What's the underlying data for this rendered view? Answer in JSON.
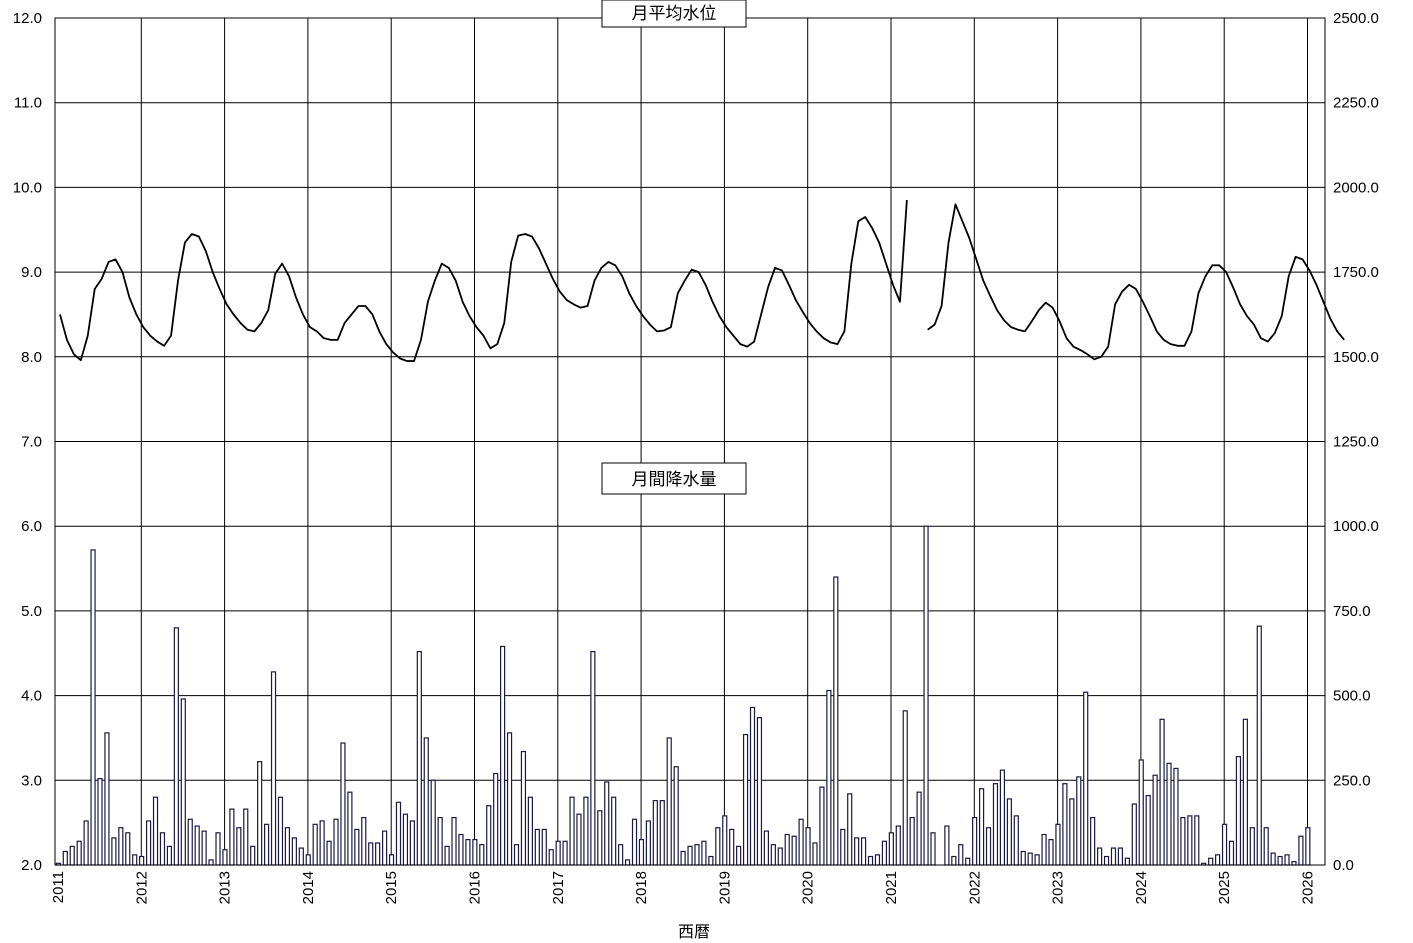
{
  "chart_data": {
    "type": "bar+line",
    "xlabel": "西暦",
    "x_ticks": [
      "2011",
      "2012",
      "2013",
      "2014",
      "2015",
      "2016",
      "2017",
      "2018",
      "2019",
      "2020",
      "2021",
      "2022",
      "2023",
      "2024",
      "2025",
      "2026"
    ],
    "start_year": 2011,
    "left_axis": {
      "ylim": [
        2.0,
        12.0
      ],
      "ticks": [
        "2.0",
        "3.0",
        "4.0",
        "5.0",
        "6.0",
        "7.0",
        "8.0",
        "9.0",
        "10.0",
        "11.0",
        "12.0"
      ]
    },
    "right_axis": {
      "ylim": [
        0,
        2500
      ],
      "ticks": [
        "0.0",
        "250.0",
        "500.0",
        "750.0",
        "1000.0",
        "1250.0",
        "1500.0",
        "1750.0",
        "2000.0",
        "2250.0",
        "2500.0"
      ]
    },
    "grid": true,
    "series": [
      {
        "name": "月平均水位",
        "type": "line",
        "axis": "left",
        "values": [
          8.5,
          8.2,
          8.03,
          7.96,
          8.25,
          8.8,
          8.92,
          9.12,
          9.15,
          9.0,
          8.7,
          8.5,
          8.35,
          8.25,
          8.18,
          8.13,
          8.25,
          8.9,
          9.35,
          9.45,
          9.42,
          9.25,
          9.0,
          8.8,
          8.62,
          8.5,
          8.4,
          8.32,
          8.3,
          8.4,
          8.55,
          8.98,
          9.1,
          8.95,
          8.7,
          8.5,
          8.35,
          8.3,
          8.22,
          8.2,
          8.2,
          8.4,
          8.5,
          8.6,
          8.6,
          8.5,
          8.3,
          8.15,
          8.05,
          7.98,
          7.95,
          7.95,
          8.2,
          8.65,
          8.9,
          9.1,
          9.05,
          8.9,
          8.65,
          8.48,
          8.35,
          8.25,
          8.1,
          8.15,
          8.4,
          9.12,
          9.43,
          9.45,
          9.42,
          9.28,
          9.1,
          8.92,
          8.77,
          8.67,
          8.62,
          8.58,
          8.6,
          8.9,
          9.05,
          9.12,
          9.08,
          8.95,
          8.75,
          8.6,
          8.48,
          8.38,
          8.3,
          8.31,
          8.35,
          8.75,
          8.9,
          9.03,
          9.0,
          8.85,
          8.65,
          8.48,
          8.35,
          8.25,
          8.15,
          8.12,
          8.18,
          8.5,
          8.82,
          9.05,
          9.02,
          8.85,
          8.67,
          8.53,
          8.4,
          8.3,
          8.22,
          8.17,
          8.15,
          8.3,
          9.1,
          9.6,
          9.65,
          9.52,
          9.35,
          9.1,
          8.85,
          8.65,
          9.85,
          null,
          null,
          8.32,
          8.38,
          8.6,
          9.35,
          9.8,
          9.6,
          9.4,
          9.15,
          8.9,
          8.72,
          8.55,
          8.43,
          8.35,
          8.32,
          8.3,
          8.42,
          8.55,
          8.64,
          8.58,
          8.42,
          8.22,
          8.12,
          8.08,
          8.03,
          7.97,
          8.0,
          8.12,
          8.62,
          8.77,
          8.85,
          8.8,
          8.65,
          8.48,
          8.3,
          8.2,
          8.15,
          8.13,
          8.13,
          8.3,
          8.75,
          8.95,
          9.08,
          9.08,
          9.0,
          8.82,
          8.62,
          8.48,
          8.38,
          8.22,
          8.18,
          8.28,
          8.48,
          8.95,
          9.18,
          9.15,
          9.02,
          8.85,
          8.65,
          8.45,
          8.3,
          8.2
        ]
      },
      {
        "name": "月間降水量",
        "type": "bar",
        "axis": "right",
        "values": [
          5,
          40,
          55,
          70,
          130,
          930,
          255,
          390,
          80,
          110,
          95,
          30,
          25,
          130,
          200,
          95,
          55,
          700,
          490,
          135,
          115,
          100,
          15,
          95,
          45,
          165,
          110,
          165,
          55,
          305,
          120,
          570,
          200,
          110,
          80,
          50,
          30,
          120,
          130,
          70,
          135,
          360,
          215,
          105,
          140,
          65,
          65,
          100,
          30,
          185,
          150,
          130,
          630,
          375,
          250,
          140,
          55,
          140,
          90,
          75,
          75,
          60,
          175,
          270,
          645,
          390,
          60,
          335,
          200,
          105,
          105,
          45,
          70,
          70,
          200,
          150,
          200,
          630,
          160,
          245,
          200,
          60,
          15,
          135,
          75,
          130,
          190,
          190,
          375,
          290,
          40,
          55,
          60,
          70,
          25,
          110,
          145,
          105,
          55,
          385,
          465,
          435,
          100,
          60,
          50,
          90,
          85,
          135,
          110,
          65,
          230,
          515,
          850,
          105,
          210,
          80,
          80,
          25,
          30,
          70,
          95,
          115,
          455,
          140,
          215,
          1000,
          95,
          0,
          115,
          25,
          60,
          20,
          140,
          225,
          110,
          240,
          280,
          195,
          145,
          40,
          35,
          30,
          90,
          75,
          120,
          240,
          195,
          260,
          510,
          140,
          50,
          25,
          50,
          50,
          20,
          180,
          310,
          205,
          265,
          430,
          300,
          285,
          140,
          145,
          145,
          5,
          20,
          30,
          120,
          70,
          320,
          430,
          110,
          705,
          110,
          35,
          25,
          30,
          10,
          85,
          110
        ]
      }
    ]
  }
}
